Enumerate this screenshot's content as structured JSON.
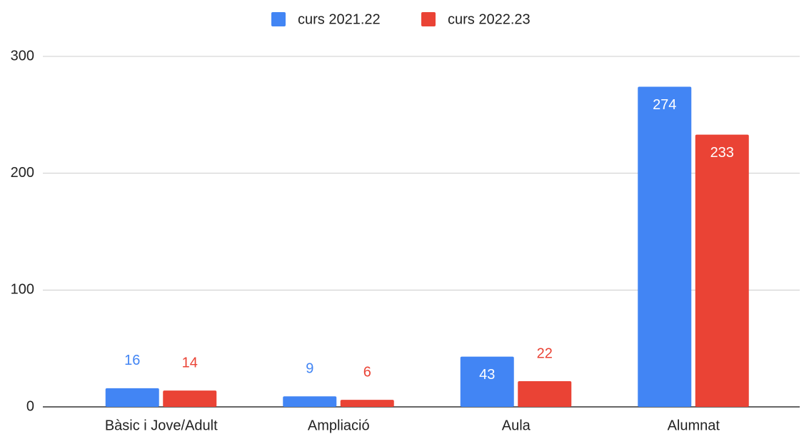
{
  "chart_data": {
    "type": "bar",
    "categories": [
      "Bàsic i Jove/Adult",
      "Ampliació",
      "Aula",
      "Alumnat"
    ],
    "series": [
      {
        "name": "curs 2021.22",
        "color": "#4285f4",
        "values": [
          16,
          9,
          43,
          274
        ]
      },
      {
        "name": "curs 2022.23",
        "color": "#ea4335",
        "values": [
          14,
          6,
          22,
          233
        ]
      }
    ],
    "ylim": [
      0,
      300
    ],
    "yticks": [
      0,
      100,
      200,
      300
    ],
    "grid": true,
    "legend": "top"
  }
}
